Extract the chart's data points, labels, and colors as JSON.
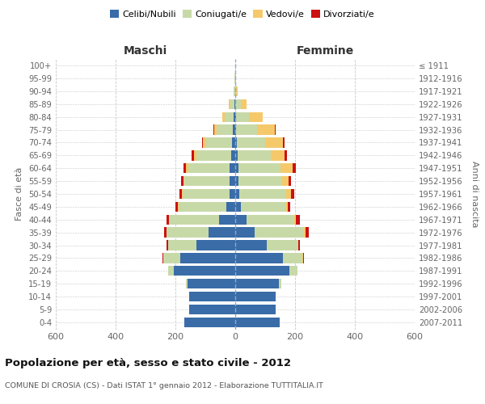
{
  "age_groups": [
    "0-4",
    "5-9",
    "10-14",
    "15-19",
    "20-24",
    "25-29",
    "30-34",
    "35-39",
    "40-44",
    "45-49",
    "50-54",
    "55-59",
    "60-64",
    "65-69",
    "70-74",
    "75-79",
    "80-84",
    "85-89",
    "90-94",
    "95-99",
    "100+"
  ],
  "birth_years": [
    "2007-2011",
    "2002-2006",
    "1997-2001",
    "1992-1996",
    "1987-1991",
    "1982-1986",
    "1977-1981",
    "1972-1976",
    "1967-1971",
    "1962-1966",
    "1957-1961",
    "1952-1956",
    "1947-1951",
    "1942-1946",
    "1937-1941",
    "1932-1936",
    "1927-1931",
    "1922-1926",
    "1917-1921",
    "1912-1916",
    "≤ 1911"
  ],
  "maschi_celibi": [
    170,
    155,
    155,
    160,
    205,
    185,
    130,
    90,
    55,
    30,
    20,
    20,
    18,
    14,
    12,
    8,
    5,
    2,
    1,
    1,
    0
  ],
  "maschi_coniugati": [
    0,
    0,
    0,
    5,
    18,
    55,
    95,
    140,
    165,
    160,
    155,
    150,
    140,
    115,
    85,
    55,
    30,
    15,
    4,
    1,
    0
  ],
  "maschi_vedovi": [
    0,
    0,
    0,
    0,
    0,
    0,
    0,
    1,
    2,
    3,
    3,
    4,
    8,
    10,
    10,
    8,
    8,
    4,
    1,
    0,
    0
  ],
  "maschi_divorziati": [
    0,
    0,
    0,
    0,
    0,
    2,
    4,
    8,
    8,
    8,
    8,
    8,
    8,
    6,
    4,
    3,
    0,
    0,
    0,
    0,
    0
  ],
  "femmine_nubili": [
    148,
    135,
    135,
    145,
    180,
    160,
    105,
    65,
    38,
    18,
    14,
    12,
    12,
    8,
    6,
    4,
    2,
    1,
    0,
    0,
    0
  ],
  "femmine_coniugate": [
    0,
    0,
    0,
    8,
    28,
    65,
    105,
    165,
    160,
    150,
    155,
    145,
    140,
    110,
    95,
    70,
    45,
    18,
    4,
    1,
    0
  ],
  "femmine_vedove": [
    0,
    0,
    0,
    0,
    0,
    1,
    2,
    4,
    6,
    8,
    18,
    22,
    40,
    48,
    58,
    58,
    45,
    18,
    5,
    2,
    0
  ],
  "femmine_divorziate": [
    0,
    0,
    0,
    0,
    1,
    3,
    4,
    12,
    12,
    8,
    10,
    8,
    10,
    8,
    6,
    4,
    0,
    0,
    0,
    0,
    0
  ],
  "colors": {
    "celibi_nubili": "#3a6ca8",
    "coniugati": "#c8d9a8",
    "vedovi": "#f5c96a",
    "divorziati": "#cc1111"
  },
  "title": "Popolazione per età, sesso e stato civile - 2012",
  "subtitle": "COMUNE DI CROSIA (CS) - Dati ISTAT 1° gennaio 2012 - Elaborazione TUTTITALIA.IT",
  "xlabel_left": "Maschi",
  "xlabel_right": "Femmine",
  "ylabel_left": "Fasce di età",
  "ylabel_right": "Anni di nascita",
  "xlim": 600,
  "bg_color": "#ffffff",
  "grid_color": "#c8c8c8",
  "bar_height": 0.78
}
